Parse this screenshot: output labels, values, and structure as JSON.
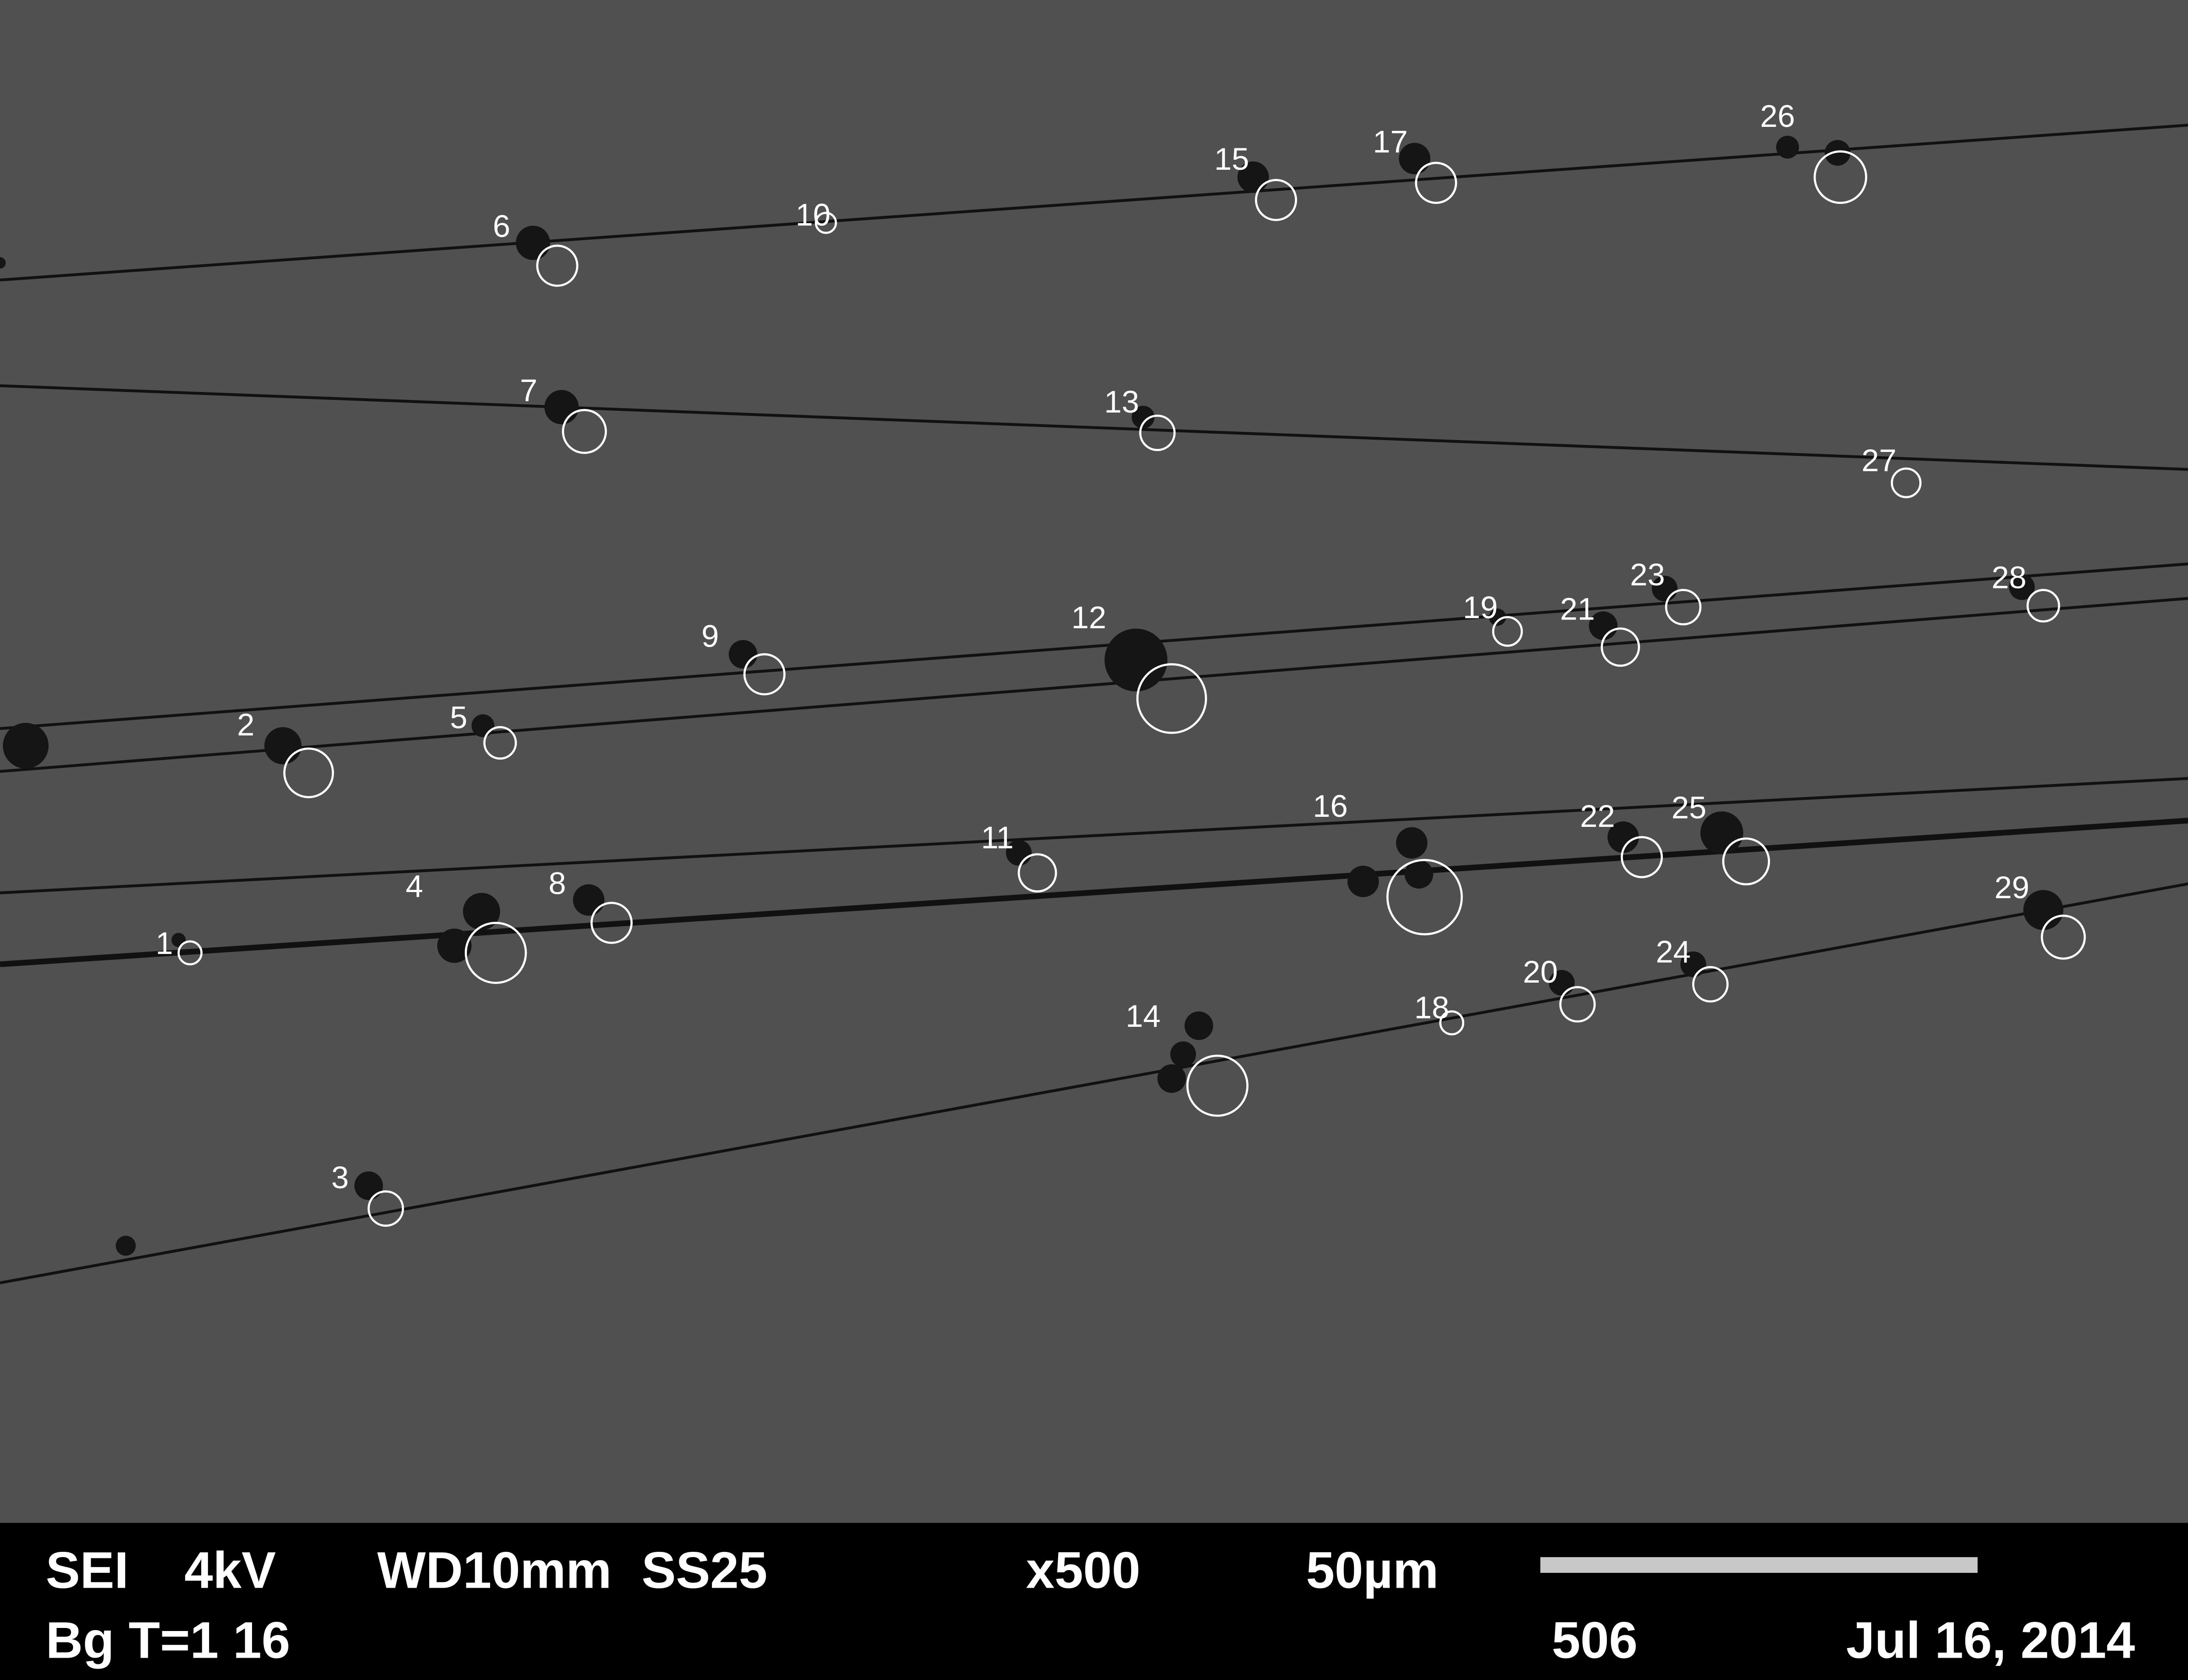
{
  "particles": [
    {
      "label": "1"
    },
    {
      "label": "2"
    },
    {
      "label": "3"
    },
    {
      "label": "4"
    },
    {
      "label": "5"
    },
    {
      "label": "6"
    },
    {
      "label": "7"
    },
    {
      "label": "8"
    },
    {
      "label": "9"
    },
    {
      "label": "10"
    },
    {
      "label": "11"
    },
    {
      "label": "12"
    },
    {
      "label": "13"
    },
    {
      "label": "14"
    },
    {
      "label": "15"
    },
    {
      "label": "16"
    },
    {
      "label": "17"
    },
    {
      "label": "18"
    },
    {
      "label": "19"
    },
    {
      "label": "20"
    },
    {
      "label": "21"
    },
    {
      "label": "22"
    },
    {
      "label": "23"
    },
    {
      "label": "24"
    },
    {
      "label": "25"
    },
    {
      "label": "26"
    },
    {
      "label": "27"
    },
    {
      "label": "28"
    },
    {
      "label": "29"
    }
  ],
  "info_bar": {
    "mode": "SEI",
    "voltage": "4kV",
    "working_distance": "WD10mm",
    "spot_size": "SS25",
    "magnification": "x500",
    "scale": "50µm",
    "detector": "Bg T=1 16",
    "image_number": "506",
    "date": "Jul 16, 2014"
  }
}
